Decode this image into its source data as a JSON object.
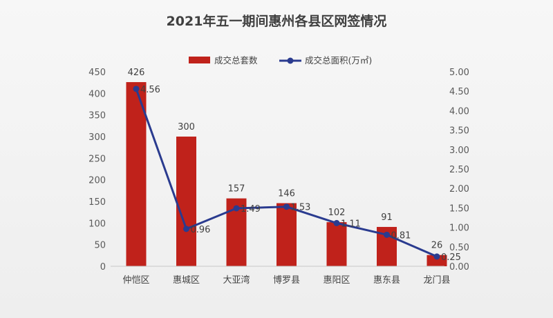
{
  "chart_data": {
    "type": "bar",
    "title": "2021年五一期间惠州各县区网签情况",
    "categories": [
      "仲恺区",
      "惠城区",
      "大亚湾",
      "博罗县",
      "惠阳区",
      "惠东县",
      "龙门县"
    ],
    "series": [
      {
        "name": "成交总套数",
        "type": "bar",
        "axis": "left",
        "color": "#c0221b",
        "values": [
          426,
          300,
          157,
          146,
          102,
          91,
          26
        ],
        "labels": [
          "426",
          "300",
          "157",
          "146",
          "102",
          "91",
          "26"
        ]
      },
      {
        "name": "成交总面积(万㎡)",
        "type": "line",
        "axis": "right",
        "color": "#2a3b8f",
        "values": [
          4.56,
          0.96,
          1.49,
          1.53,
          1.11,
          0.81,
          0.25
        ],
        "labels": [
          "4.56",
          "0.96",
          "1.49",
          "1.53",
          "1.11",
          "0.81",
          "0.25"
        ]
      }
    ],
    "y_left": {
      "ylim": [
        0,
        450
      ],
      "ticks": [
        "0",
        "50",
        "100",
        "150",
        "200",
        "250",
        "300",
        "350",
        "400",
        "450"
      ]
    },
    "y_right": {
      "ylim": [
        0,
        5
      ],
      "ticks": [
        "0.00",
        "0.50",
        "1.00",
        "1.50",
        "2.00",
        "2.50",
        "3.00",
        "3.50",
        "4.00",
        "4.50",
        "5.00"
      ]
    },
    "legend": "top-center",
    "grid": false
  }
}
